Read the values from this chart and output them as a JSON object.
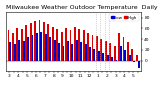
{
  "title": "Milwaukee Weather Outdoor Temperature  Daily High/Low",
  "background_color": "#ffffff",
  "bar_width": 0.42,
  "dashed_lines_at": [
    20,
    21,
    22,
    23
  ],
  "highs": [
    56,
    52,
    60,
    58,
    66,
    70,
    74,
    76,
    72,
    68,
    62,
    58,
    54,
    60,
    56,
    62,
    58,
    56,
    52,
    48,
    46,
    40,
    36,
    32,
    28,
    52,
    44,
    34,
    22,
    10
  ],
  "lows": [
    34,
    30,
    38,
    36,
    44,
    48,
    52,
    54,
    50,
    44,
    38,
    32,
    28,
    36,
    30,
    38,
    34,
    30,
    26,
    22,
    18,
    14,
    10,
    6,
    2,
    28,
    20,
    10,
    -2,
    -14
  ],
  "high_color": "#dd0000",
  "low_color": "#0000cc",
  "dashed_color": "#aaaaaa",
  "ylim": [
    -20,
    90
  ],
  "ytick_values": [
    0,
    20,
    40,
    60,
    80
  ],
  "ytick_labels": [
    "0",
    "20",
    "40",
    "60",
    "80"
  ],
  "x_labels": [
    "3",
    "",
    "4",
    "",
    "5",
    "",
    "6",
    "",
    "7",
    "",
    "8",
    "",
    "9",
    "",
    "10",
    "",
    "11",
    "",
    "12",
    "",
    "1",
    "",
    "2",
    "",
    "3",
    "",
    "4",
    "",
    "5",
    ""
  ],
  "legend_high": "High",
  "legend_low": "Low",
  "title_fontsize": 4.5,
  "tick_fontsize": 3.2
}
